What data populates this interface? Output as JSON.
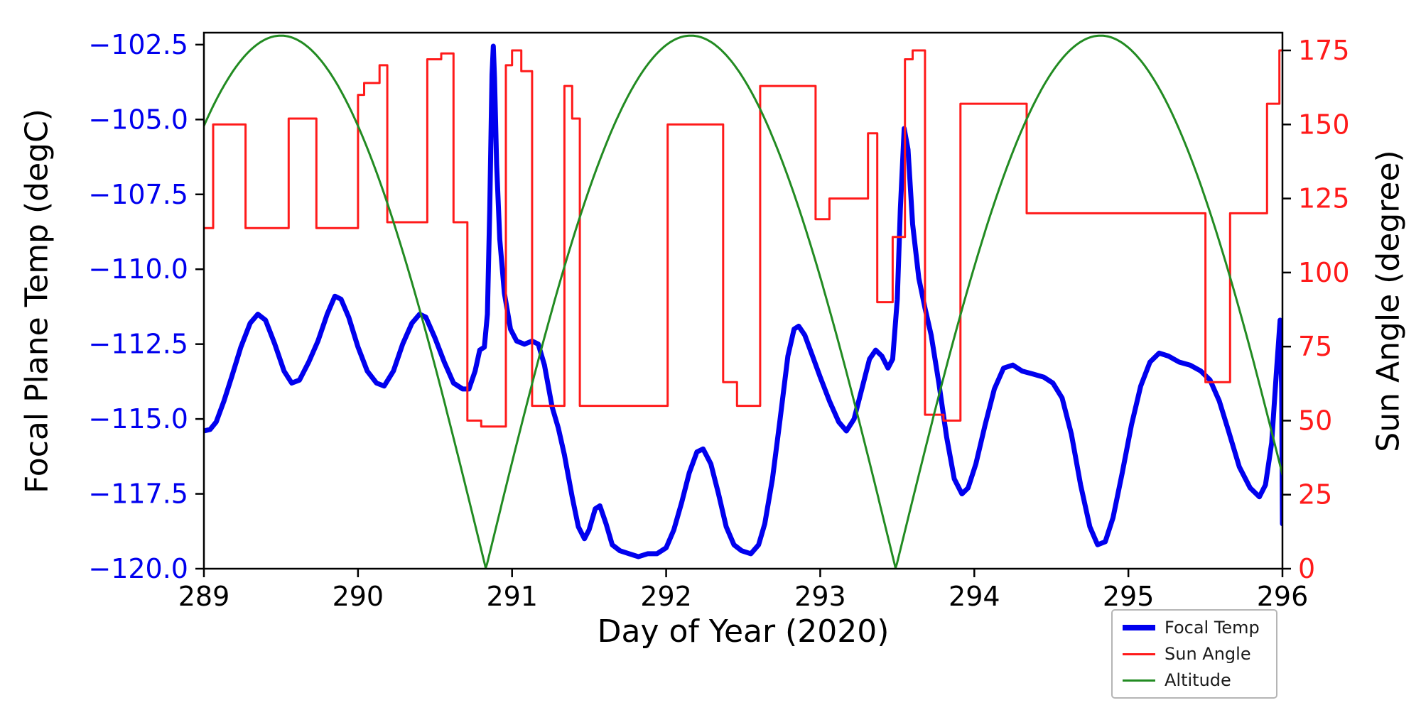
{
  "figure": {
    "background": "#ffffff"
  },
  "chart_data": {
    "type": "line",
    "title": "",
    "xlabel": "Day of Year (2020)",
    "ylabel_left": "Focal Plane Temp (degC)",
    "ylabel_right": "Sun Angle (degree)",
    "x_range": [
      289,
      296
    ],
    "y_left_range": [
      -120.0,
      -102.1
    ],
    "y_right_range": [
      0,
      181
    ],
    "grid": false,
    "axis_color": "#000000",
    "left_tick_color": "#0000ee",
    "right_tick_color": "#ff1a1a",
    "x_ticks": [
      289,
      290,
      291,
      292,
      293,
      294,
      295,
      296
    ],
    "x_tick_labels": [
      "289",
      "290",
      "291",
      "292",
      "293",
      "294",
      "295",
      "296"
    ],
    "y_left_ticks": [
      -120.0,
      -117.5,
      -115.0,
      -112.5,
      -110.0,
      -107.5,
      -105.0,
      -102.5
    ],
    "y_left_tick_labels": [
      "−120.0",
      "−117.5",
      "−115.0",
      "−112.5",
      "−110.0",
      "−107.5",
      "−105.0",
      "−102.5"
    ],
    "y_right_ticks": [
      0,
      25,
      50,
      75,
      100,
      125,
      150,
      175
    ],
    "y_right_tick_labels": [
      "0",
      "25",
      "50",
      "75",
      "100",
      "125",
      "150",
      "175"
    ],
    "series": [
      {
        "name": "Focal Temp",
        "axis": "left",
        "style": "line",
        "color": "#0000ee",
        "width": 7,
        "points": [
          [
            289.0,
            -115.4
          ],
          [
            289.04,
            -115.35
          ],
          [
            289.08,
            -115.1
          ],
          [
            289.13,
            -114.4
          ],
          [
            289.18,
            -113.6
          ],
          [
            289.24,
            -112.6
          ],
          [
            289.3,
            -111.8
          ],
          [
            289.35,
            -111.5
          ],
          [
            289.4,
            -111.7
          ],
          [
            289.46,
            -112.5
          ],
          [
            289.52,
            -113.4
          ],
          [
            289.57,
            -113.8
          ],
          [
            289.62,
            -113.7
          ],
          [
            289.68,
            -113.1
          ],
          [
            289.74,
            -112.4
          ],
          [
            289.8,
            -111.5
          ],
          [
            289.85,
            -110.9
          ],
          [
            289.89,
            -111.0
          ],
          [
            289.94,
            -111.6
          ],
          [
            290.0,
            -112.6
          ],
          [
            290.06,
            -113.4
          ],
          [
            290.12,
            -113.8
          ],
          [
            290.17,
            -113.9
          ],
          [
            290.23,
            -113.4
          ],
          [
            290.29,
            -112.5
          ],
          [
            290.35,
            -111.8
          ],
          [
            290.4,
            -111.5
          ],
          [
            290.44,
            -111.6
          ],
          [
            290.5,
            -112.3
          ],
          [
            290.56,
            -113.1
          ],
          [
            290.62,
            -113.8
          ],
          [
            290.68,
            -114.0
          ],
          [
            290.72,
            -114.0
          ],
          [
            290.76,
            -113.4
          ],
          [
            290.79,
            -112.7
          ],
          [
            290.82,
            -112.6
          ],
          [
            290.84,
            -111.5
          ],
          [
            290.855,
            -108.0
          ],
          [
            290.87,
            -103.5
          ],
          [
            290.878,
            -102.55
          ],
          [
            290.886,
            -103.6
          ],
          [
            290.9,
            -106.5
          ],
          [
            290.92,
            -109.0
          ],
          [
            290.95,
            -110.8
          ],
          [
            290.99,
            -112.0
          ],
          [
            291.03,
            -112.4
          ],
          [
            291.08,
            -112.5
          ],
          [
            291.13,
            -112.4
          ],
          [
            291.17,
            -112.5
          ],
          [
            291.21,
            -113.2
          ],
          [
            291.26,
            -114.6
          ],
          [
            291.3,
            -115.3
          ],
          [
            291.34,
            -116.2
          ],
          [
            291.39,
            -117.6
          ],
          [
            291.43,
            -118.6
          ],
          [
            291.47,
            -119.0
          ],
          [
            291.5,
            -118.7
          ],
          [
            291.54,
            -118.0
          ],
          [
            291.57,
            -117.9
          ],
          [
            291.61,
            -118.5
          ],
          [
            291.65,
            -119.2
          ],
          [
            291.7,
            -119.4
          ],
          [
            291.76,
            -119.5
          ],
          [
            291.82,
            -119.6
          ],
          [
            291.88,
            -119.5
          ],
          [
            291.94,
            -119.5
          ],
          [
            292.0,
            -119.3
          ],
          [
            292.05,
            -118.7
          ],
          [
            292.1,
            -117.8
          ],
          [
            292.15,
            -116.8
          ],
          [
            292.2,
            -116.1
          ],
          [
            292.24,
            -116.0
          ],
          [
            292.29,
            -116.5
          ],
          [
            292.34,
            -117.5
          ],
          [
            292.39,
            -118.6
          ],
          [
            292.44,
            -119.2
          ],
          [
            292.49,
            -119.4
          ],
          [
            292.55,
            -119.5
          ],
          [
            292.6,
            -119.2
          ],
          [
            292.64,
            -118.5
          ],
          [
            292.69,
            -117.0
          ],
          [
            292.74,
            -115.0
          ],
          [
            292.79,
            -112.9
          ],
          [
            292.83,
            -112.0
          ],
          [
            292.86,
            -111.9
          ],
          [
            292.9,
            -112.2
          ],
          [
            292.95,
            -112.9
          ],
          [
            293.0,
            -113.6
          ],
          [
            293.06,
            -114.4
          ],
          [
            293.12,
            -115.1
          ],
          [
            293.17,
            -115.4
          ],
          [
            293.22,
            -115.0
          ],
          [
            293.27,
            -114.0
          ],
          [
            293.32,
            -113.0
          ],
          [
            293.36,
            -112.7
          ],
          [
            293.4,
            -112.9
          ],
          [
            293.44,
            -113.3
          ],
          [
            293.47,
            -113.0
          ],
          [
            293.5,
            -111.0
          ],
          [
            293.52,
            -108.0
          ],
          [
            293.545,
            -105.3
          ],
          [
            293.57,
            -106.0
          ],
          [
            293.6,
            -108.5
          ],
          [
            293.64,
            -110.3
          ],
          [
            293.68,
            -111.3
          ],
          [
            293.72,
            -112.2
          ],
          [
            293.77,
            -113.8
          ],
          [
            293.82,
            -115.6
          ],
          [
            293.87,
            -117.0
          ],
          [
            293.92,
            -117.5
          ],
          [
            293.96,
            -117.3
          ],
          [
            294.01,
            -116.5
          ],
          [
            294.07,
            -115.2
          ],
          [
            294.13,
            -114.0
          ],
          [
            294.19,
            -113.3
          ],
          [
            294.25,
            -113.2
          ],
          [
            294.31,
            -113.4
          ],
          [
            294.38,
            -113.5
          ],
          [
            294.45,
            -113.6
          ],
          [
            294.51,
            -113.8
          ],
          [
            294.57,
            -114.3
          ],
          [
            294.63,
            -115.5
          ],
          [
            294.69,
            -117.2
          ],
          [
            294.75,
            -118.6
          ],
          [
            294.8,
            -119.2
          ],
          [
            294.85,
            -119.1
          ],
          [
            294.9,
            -118.3
          ],
          [
            294.96,
            -116.8
          ],
          [
            295.02,
            -115.2
          ],
          [
            295.08,
            -113.9
          ],
          [
            295.14,
            -113.1
          ],
          [
            295.2,
            -112.8
          ],
          [
            295.26,
            -112.9
          ],
          [
            295.33,
            -113.1
          ],
          [
            295.4,
            -113.2
          ],
          [
            295.47,
            -113.4
          ],
          [
            295.53,
            -113.7
          ],
          [
            295.59,
            -114.4
          ],
          [
            295.65,
            -115.4
          ],
          [
            295.72,
            -116.6
          ],
          [
            295.79,
            -117.3
          ],
          [
            295.85,
            -117.6
          ],
          [
            295.89,
            -117.2
          ],
          [
            295.93,
            -115.8
          ],
          [
            295.96,
            -113.5
          ],
          [
            295.985,
            -111.7
          ],
          [
            295.995,
            -114.0
          ],
          [
            296.0,
            -118.5
          ]
        ]
      },
      {
        "name": "Sun Angle",
        "axis": "right",
        "style": "step",
        "color": "#ff1a1a",
        "width": 3,
        "points": [
          [
            289.0,
            115
          ],
          [
            289.06,
            150
          ],
          [
            289.27,
            115
          ],
          [
            289.55,
            152
          ],
          [
            289.73,
            115
          ],
          [
            290.0,
            160
          ],
          [
            290.04,
            164
          ],
          [
            290.14,
            170
          ],
          [
            290.19,
            117
          ],
          [
            290.45,
            172
          ],
          [
            290.54,
            174
          ],
          [
            290.62,
            117
          ],
          [
            290.71,
            50
          ],
          [
            290.8,
            48
          ],
          [
            290.96,
            170
          ],
          [
            291.0,
            175
          ],
          [
            291.06,
            168
          ],
          [
            291.13,
            55
          ],
          [
            291.34,
            163
          ],
          [
            291.39,
            152
          ],
          [
            291.44,
            55
          ],
          [
            292.01,
            150
          ],
          [
            292.37,
            63
          ],
          [
            292.46,
            55
          ],
          [
            292.61,
            163
          ],
          [
            292.97,
            118
          ],
          [
            293.06,
            125
          ],
          [
            293.31,
            147
          ],
          [
            293.37,
            90
          ],
          [
            293.47,
            112
          ],
          [
            293.55,
            172
          ],
          [
            293.6,
            175
          ],
          [
            293.68,
            52
          ],
          [
            293.8,
            50
          ],
          [
            293.91,
            157
          ],
          [
            294.34,
            120
          ],
          [
            295.5,
            63
          ],
          [
            295.66,
            120
          ],
          [
            295.9,
            157
          ],
          [
            295.98,
            175
          ]
        ]
      },
      {
        "name": "Altitude",
        "axis": "right",
        "style": "abs_sin",
        "color": "#228b22",
        "width": 3,
        "model": {
          "x_zero": 290.83,
          "period": 2.66,
          "amplitude": 180
        }
      }
    ],
    "legend": {
      "position": "lower right",
      "items": [
        {
          "label": "Focal Temp",
          "color": "#0000ee",
          "swatch_height": 8
        },
        {
          "label": "Sun Angle",
          "color": "#ff1a1a",
          "swatch_height": 3
        },
        {
          "label": "Altitude",
          "color": "#228b22",
          "swatch_height": 3
        }
      ]
    }
  }
}
